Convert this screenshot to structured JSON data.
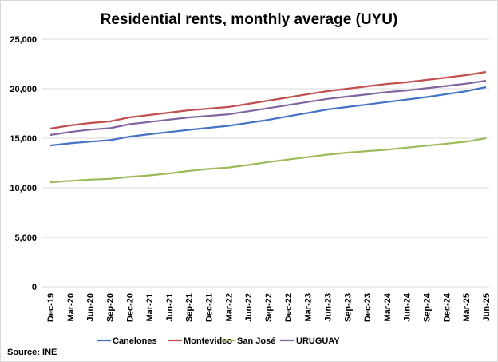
{
  "chart_data": {
    "type": "line",
    "title": "Residential rents, monthly average (UYU)",
    "source": "Source: INE",
    "xlabel": "",
    "ylabel": "",
    "ylim": [
      0,
      25000
    ],
    "yticks": [
      0,
      5000,
      10000,
      15000,
      20000,
      25000
    ],
    "ytick_labels": [
      "0",
      "5,000",
      "10,000",
      "15,000",
      "20,000",
      "25,000"
    ],
    "grid": true,
    "legend_position": "bottom",
    "x": [
      "Dec-19",
      "Mar-20",
      "Jun-20",
      "Sep-20",
      "Dec-20",
      "Mar-21",
      "Jun-21",
      "Sep-21",
      "Dec-21",
      "Mar-22",
      "Jun-22",
      "Sep-22",
      "Dec-22",
      "Mar-23",
      "Jun-23",
      "Sep-23",
      "Dec-23",
      "Mar-24",
      "Jun-24",
      "Sep-24",
      "Dec-24",
      "Mar-25",
      "Jun-25"
    ],
    "series": [
      {
        "name": "Canelones",
        "color": "#4472c4",
        "values": [
          14270,
          14480,
          14650,
          14800,
          15150,
          15400,
          15620,
          15850,
          16050,
          16250,
          16550,
          16850,
          17200,
          17550,
          17900,
          18150,
          18400,
          18650,
          18900,
          19150,
          19450,
          19750,
          20160
        ]
      },
      {
        "name": "Montevideo",
        "color": "#c0504d",
        "values": [
          15970,
          16290,
          16530,
          16690,
          17100,
          17340,
          17580,
          17820,
          17980,
          18150,
          18470,
          18790,
          19110,
          19440,
          19760,
          20000,
          20240,
          20480,
          20650,
          20890,
          21130,
          21370,
          21690
        ]
      },
      {
        "name": "San José",
        "color": "#9bbb59",
        "values": [
          10560,
          10700,
          10820,
          10900,
          11100,
          11250,
          11450,
          11700,
          11900,
          12050,
          12300,
          12600,
          12850,
          13100,
          13350,
          13550,
          13700,
          13850,
          14050,
          14250,
          14450,
          14650,
          15000
        ]
      },
      {
        "name": "URUGUAY",
        "color": "#8064a2",
        "values": [
          15320,
          15630,
          15860,
          16010,
          16410,
          16640,
          16870,
          17100,
          17250,
          17410,
          17720,
          18030,
          18340,
          18660,
          18970,
          19200,
          19430,
          19660,
          19820,
          20050,
          20280,
          20510,
          20810
        ]
      }
    ]
  }
}
